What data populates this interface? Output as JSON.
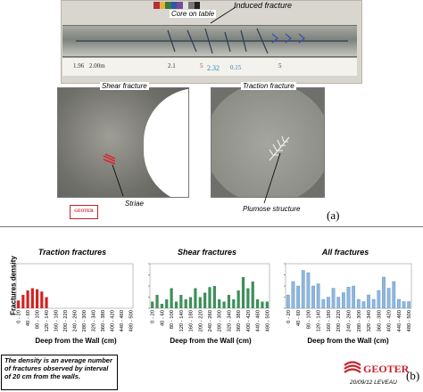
{
  "panel_a": {
    "core_on_table": "Core on table",
    "induced_fracture": "Induced fracture",
    "tape_marks": [
      "1.96",
      "2.00m",
      "2.1",
      "5",
      "2.32",
      "0.15",
      "5"
    ],
    "shear_fracture": "Shear fracture",
    "traction_fracture": "Traction fracture",
    "striae": "Striae",
    "plumose_structure": "Plumose structure",
    "panel_label": "(a)"
  },
  "panel_b": {
    "panel_label": "(b)",
    "y_axis_label": "Fractures density",
    "x_axis_label": "Deep from the Wall (cm)",
    "note": "The density is an average number of fractures observed by interval of 20 cm from the walls."
  },
  "logo": {
    "name": "GEOTER",
    "small_caption": "GEOTER",
    "date_author": "20/09/12 LEVEAU"
  },
  "colors": {
    "traction": "#d42020",
    "shear": "#3e8f5a",
    "all": "#8fb7dd"
  },
  "chart_data": [
    {
      "type": "bar",
      "title": "Traction fractures",
      "xlabel": "Deep from the Wall (cm)",
      "ylabel": "Fractures density",
      "categories": [
        "0 - 20",
        "20 - 40",
        "40 - 60",
        "60 - 80",
        "80 - 100",
        "100 - 120",
        "120 - 140",
        "140 - 160",
        "160 - 180",
        "180 - 200",
        "200 - 220",
        "220 - 240",
        "240 - 260",
        "260 - 280",
        "280 - 300",
        "300 - 320",
        "320 - 340",
        "340 - 360",
        "360 - 380",
        "380 - 400",
        "400 - 420",
        "420 - 440",
        "440 - 460",
        "460 - 480",
        "480 - 500"
      ],
      "tick_labels": [
        "0 - 20",
        "40 - 60",
        "80 - 100",
        "120 - 140",
        "160 - 180",
        "200 - 220",
        "240 - 260",
        "280 - 300",
        "320 - 340",
        "360 - 380",
        "400 - 420",
        "440 - 460",
        "480 - 500"
      ],
      "values": [
        0.35,
        0.6,
        0.8,
        0.9,
        0.85,
        0.75,
        0.5,
        0,
        0,
        0,
        0,
        0,
        0,
        0,
        0,
        0,
        0,
        0,
        0,
        0,
        0,
        0,
        0,
        0,
        0
      ],
      "ylim": [
        0,
        2.0
      ]
    },
    {
      "type": "bar",
      "title": "Shear fractures",
      "xlabel": "Deep from the Wall (cm)",
      "categories": [
        "0 - 20",
        "20 - 40",
        "40 - 60",
        "60 - 80",
        "80 - 100",
        "100 - 120",
        "120 - 140",
        "140 - 160",
        "160 - 180",
        "180 - 200",
        "200 - 220",
        "220 - 240",
        "240 - 260",
        "260 - 280",
        "280 - 300",
        "300 - 320",
        "320 - 340",
        "340 - 360",
        "360 - 380",
        "380 - 400",
        "400 - 420",
        "420 - 440",
        "440 - 460",
        "460 - 480",
        "480 - 500"
      ],
      "tick_labels": [
        "0 - 20",
        "40 - 60",
        "80 - 100",
        "120 - 140",
        "160 - 180",
        "200 - 220",
        "240 - 260",
        "280 - 300",
        "320 - 340",
        "360 - 380",
        "400 - 420",
        "440 - 460",
        "480 - 500"
      ],
      "values": [
        0.3,
        0.6,
        0.2,
        0.4,
        0.9,
        0.3,
        0.6,
        0.4,
        0.5,
        0.9,
        0.5,
        0.7,
        0.95,
        1.0,
        0.4,
        0.3,
        0.6,
        0.4,
        0.8,
        1.4,
        0.9,
        1.2,
        0.4,
        0.3,
        0.3
      ],
      "ylim": [
        0,
        2.0
      ]
    },
    {
      "type": "bar",
      "title": "All fractures",
      "xlabel": "Deep from the Wall (cm)",
      "categories": [
        "0 - 20",
        "20 - 40",
        "40 - 60",
        "60 - 80",
        "80 - 100",
        "100 - 120",
        "120 - 140",
        "140 - 160",
        "160 - 180",
        "180 - 200",
        "200 - 220",
        "220 - 240",
        "240 - 260",
        "260 - 280",
        "280 - 300",
        "300 - 320",
        "320 - 340",
        "340 - 360",
        "360 - 380",
        "380 - 400",
        "400 - 420",
        "420 - 440",
        "440 - 460",
        "460 - 480",
        "480 - 500"
      ],
      "tick_labels": [
        "0 - 20",
        "40 - 60",
        "80 - 100",
        "120 - 140",
        "160 - 180",
        "200 - 220",
        "240 - 260",
        "280 - 300",
        "320 - 340",
        "360 - 380",
        "400 - 420",
        "440 - 460",
        "480 - 500"
      ],
      "values": [
        0.6,
        1.2,
        1.0,
        1.7,
        1.6,
        1.0,
        1.1,
        0.4,
        0.5,
        0.9,
        0.5,
        0.7,
        0.95,
        1.0,
        0.4,
        0.3,
        0.6,
        0.4,
        0.8,
        1.4,
        0.9,
        1.2,
        0.4,
        0.3,
        0.3
      ],
      "ylim": [
        0,
        2.0
      ]
    }
  ]
}
